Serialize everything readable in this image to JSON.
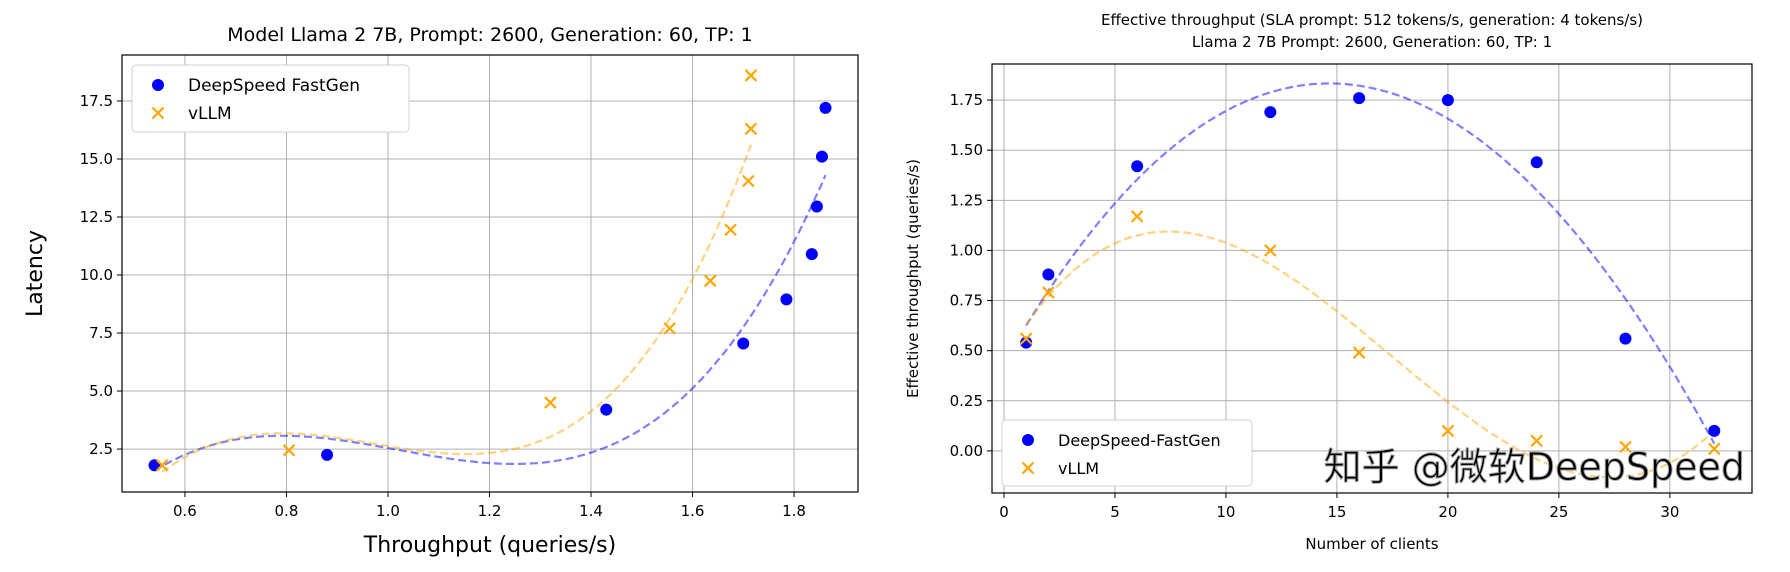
{
  "chart_data": [
    {
      "type": "scatter",
      "title": "Model Llama 2 7B, Prompt: 2600, Generation: 60, TP: 1",
      "xlabel": "Throughput (queries/s)",
      "ylabel": "Latency",
      "xlim": [
        0.476,
        1.926
      ],
      "ylim": [
        0.65,
        19.48
      ],
      "xticks": [
        0.6,
        0.8,
        1.0,
        1.2,
        1.4,
        1.6,
        1.8
      ],
      "xtick_labels": [
        "0.6",
        "0.8",
        "1.0",
        "1.2",
        "1.4",
        "1.6",
        "1.8"
      ],
      "yticks": [
        2.5,
        5.0,
        7.5,
        10.0,
        12.5,
        15.0,
        17.5
      ],
      "ytick_labels": [
        "2.5",
        "5.0",
        "7.5",
        "10.0",
        "12.5",
        "15.0",
        "17.5"
      ],
      "grid": true,
      "legend_position": "top-left",
      "fit": "polynomial degree 3, dashed",
      "series": [
        {
          "name": "DeepSpeed FastGen",
          "marker": "circle",
          "color": "#0000ff",
          "x": [
            0.54,
            0.88,
            1.43,
            1.7,
            1.785,
            1.835,
            1.845,
            1.855,
            1.862
          ],
          "y": [
            1.8,
            2.25,
            4.2,
            7.05,
            8.95,
            10.9,
            12.95,
            15.1,
            17.2
          ]
        },
        {
          "name": "vLLM",
          "marker": "x",
          "color": "#ffa500",
          "x": [
            0.555,
            0.805,
            1.32,
            1.555,
            1.635,
            1.675,
            1.71,
            1.715,
            1.715
          ],
          "y": [
            1.8,
            2.45,
            4.5,
            7.7,
            9.75,
            11.95,
            14.05,
            16.3,
            18.6
          ]
        }
      ]
    },
    {
      "type": "scatter",
      "title": "Effective throughput (SLA prompt: 512 tokens/s, generation: 4 tokens/s)\nLlama 2 7B Prompt: 2600, Generation: 60, TP: 1",
      "title_lines": [
        "Effective throughput (SLA prompt: 512 tokens/s, generation: 4 tokens/s)",
        "Llama 2 7B Prompt: 2600, Generation: 60, TP: 1"
      ],
      "xlabel": "Number of clients",
      "ylabel": "Effective throughput (queries/s)",
      "xlim": [
        -0.54,
        33.7
      ],
      "ylim": [
        -0.21,
        1.93
      ],
      "xticks": [
        0,
        5,
        10,
        15,
        20,
        25,
        30
      ],
      "xtick_labels": [
        "0",
        "5",
        "10",
        "15",
        "20",
        "25",
        "30"
      ],
      "yticks": [
        0,
        0.25,
        0.5,
        0.75,
        1.0,
        1.25,
        1.5,
        1.75
      ],
      "ytick_labels": [
        "0.00",
        "0.25",
        "0.50",
        "0.75",
        "1.00",
        "1.25",
        "1.50",
        "1.75"
      ],
      "grid": true,
      "legend_position": "bottom-left",
      "fit": "polynomial degree 3, dashed",
      "series": [
        {
          "name": "DeepSpeed-FastGen",
          "marker": "circle",
          "color": "#0000ff",
          "x": [
            1,
            2,
            6,
            12,
            16,
            20,
            24,
            28,
            32
          ],
          "y": [
            0.54,
            0.88,
            1.42,
            1.69,
            1.76,
            1.75,
            1.44,
            0.56,
            0.1
          ]
        },
        {
          "name": "vLLM",
          "marker": "x",
          "color": "#ffa500",
          "x": [
            1,
            2,
            6,
            12,
            16,
            20,
            24,
            28,
            32
          ],
          "y": [
            0.56,
            0.79,
            1.17,
            1.0,
            0.49,
            0.1,
            0.05,
            0.02,
            0.01
          ]
        }
      ]
    }
  ],
  "watermark": "知乎 @微软DeepSpeed"
}
